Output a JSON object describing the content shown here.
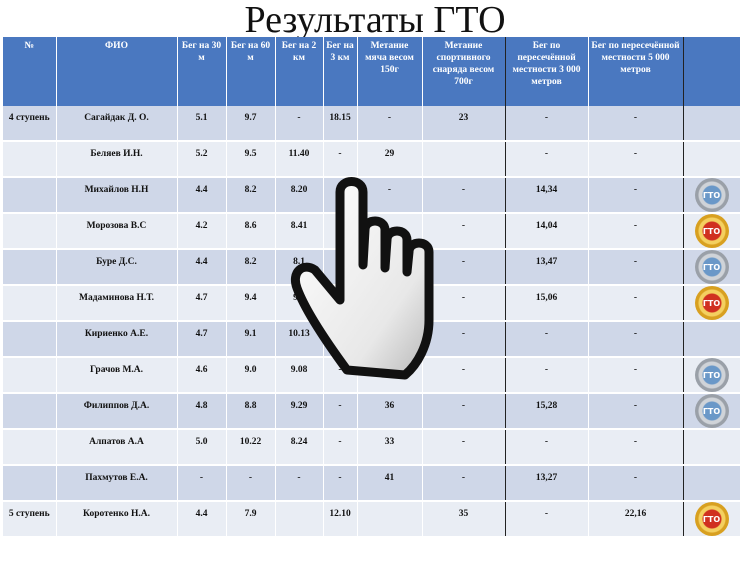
{
  "title": "Результаты ГТО",
  "headers": [
    "№",
    "ФИО",
    "Бег на 30 м",
    "Бег на 60 м",
    "Бег на 2 км",
    "Бег на 3 км",
    "Метание мяча весом 150г",
    "Метание спортивного снаряда весом 700г",
    "Бег по пересечённой местности 3 000 метров",
    "Бег по пересечённой местности 5 000 метров",
    ""
  ],
  "rows": [
    {
      "num": "4 ступень",
      "name": "Сагайдак Д. О.",
      "r30": "5.1",
      "r60": "9.7",
      "r2k": "-",
      "r3k": "18.15",
      "ball": "-",
      "proj": "23",
      "cross3": "-",
      "cross5": "-",
      "badge": ""
    },
    {
      "num": "",
      "name": "Беляев И.Н.",
      "r30": "5.2",
      "r60": "9.5",
      "r2k": "11.40",
      "r3k": "-",
      "ball": "29",
      "proj": "",
      "cross3": "-",
      "cross5": "-",
      "badge": ""
    },
    {
      "num": "",
      "name": "Михайлов Н.Н",
      "r30": "4.4",
      "r60": "8.2",
      "r2k": "8.20",
      "r3k": "",
      "ball": "-",
      "proj": "-",
      "cross3": "14,34",
      "cross5": "-",
      "badge": "silver"
    },
    {
      "num": "",
      "name": "Морозова В.С",
      "r30": "4.2",
      "r60": "8.6",
      "r2k": "8.41",
      "r3k": "",
      "ball": "",
      "proj": "-",
      "cross3": "14,04",
      "cross5": "-",
      "badge": "gold"
    },
    {
      "num": "",
      "name": "Буре Д.С.",
      "r30": "4.4",
      "r60": "8.2",
      "r2k": "8.1",
      "r3k": "",
      "ball": "",
      "proj": "-",
      "cross3": "13,47",
      "cross5": "-",
      "badge": "silver"
    },
    {
      "num": "",
      "name": "Мадаминова Н.Т.",
      "r30": "4.7",
      "r60": "9.4",
      "r2k": "9.2",
      "r3k": "",
      "ball": "",
      "proj": "-",
      "cross3": "15,06",
      "cross5": "-",
      "badge": "gold"
    },
    {
      "num": "",
      "name": "Кириенко А.Е.",
      "r30": "4.7",
      "r60": "9.1",
      "r2k": "10.13",
      "r3k": "",
      "ball": "",
      "proj": "-",
      "cross3": "-",
      "cross5": "-",
      "badge": ""
    },
    {
      "num": "",
      "name": "Грачов М.А.",
      "r30": "4.6",
      "r60": "9.0",
      "r2k": "9.08",
      "r3k": "-",
      "ball": "",
      "proj": "-",
      "cross3": "-",
      "cross5": "-",
      "badge": "silver"
    },
    {
      "num": "",
      "name": "Филиппов Д.А.",
      "r30": "4.8",
      "r60": "8.8",
      "r2k": "9.29",
      "r3k": "-",
      "ball": "36",
      "proj": "-",
      "cross3": "15,28",
      "cross5": "-",
      "badge": "silver"
    },
    {
      "num": "",
      "name": "Алпатов А.А",
      "r30": "5.0",
      "r60": "10.22",
      "r2k": "8.24",
      "r3k": "-",
      "ball": "33",
      "proj": "-",
      "cross3": "-",
      "cross5": "-",
      "badge": ""
    },
    {
      "num": "",
      "name": "Пахмутов Е.А.",
      "r30": "-",
      "r60": "-",
      "r2k": "-",
      "r3k": "-",
      "ball": "41",
      "proj": "-",
      "cross3": "13,27",
      "cross5": "-",
      "badge": ""
    },
    {
      "num": "5 ступень",
      "name": "Коротенко Н.А.",
      "r30": "4.4",
      "r60": "7.9",
      "r2k": "",
      "r3k": "12.10",
      "ball": "",
      "proj": "35",
      "cross3": "-",
      "cross5": "22,16",
      "badge": "gold"
    }
  ],
  "badge_text": "ГТО",
  "colors": {
    "header_bg": "#4a78c0",
    "row_odd": "#cfd7e8",
    "row_even": "#e9edf4",
    "badge_gold": "#d8a020",
    "badge_silver": "#9aa0a8"
  },
  "cursor_icon": "hand-pointer-icon"
}
